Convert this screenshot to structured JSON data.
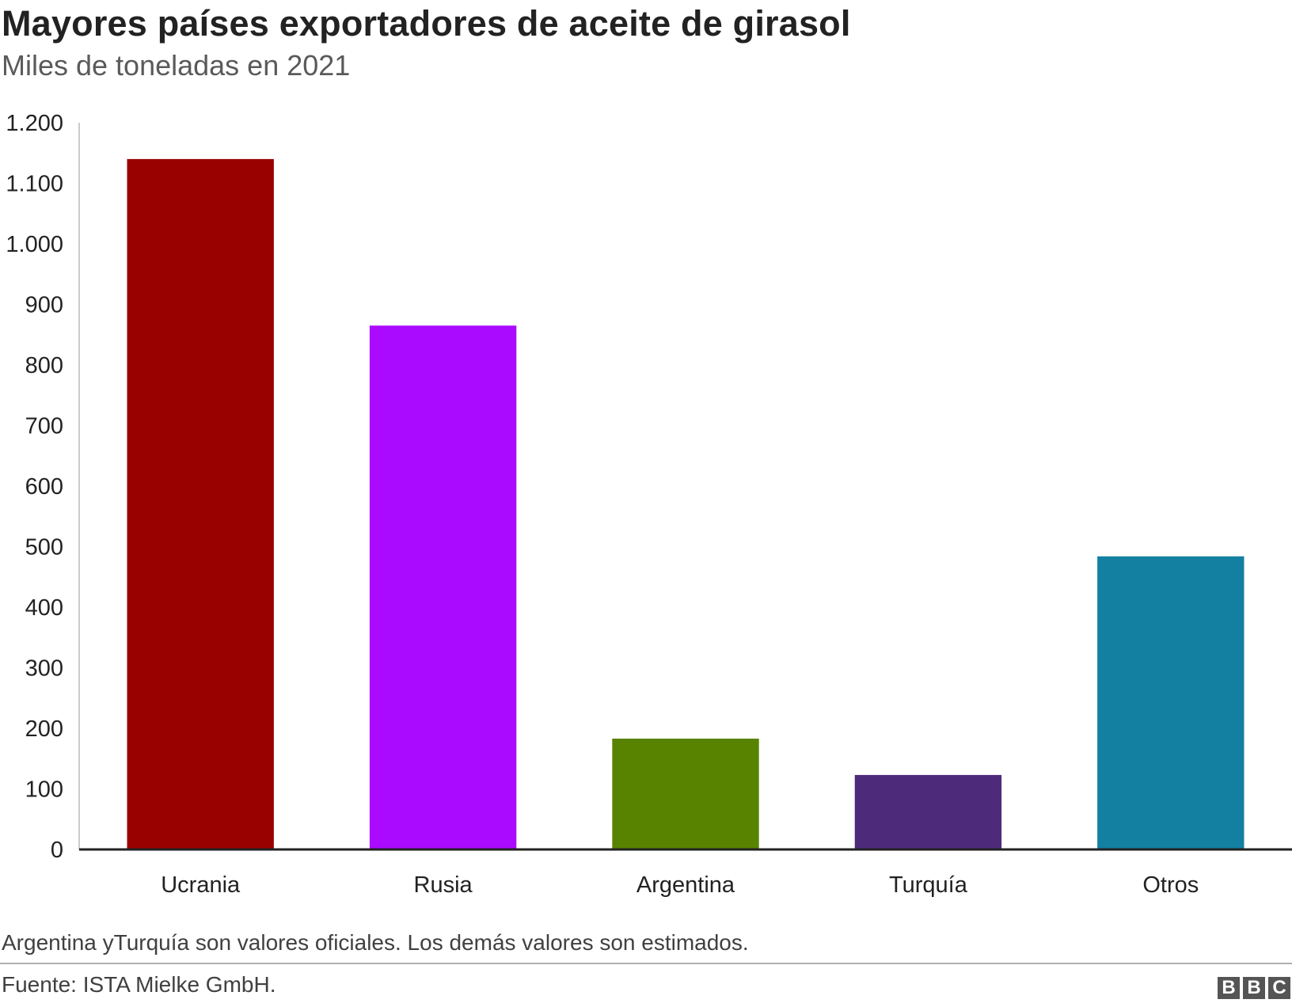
{
  "header": {
    "title": "Mayores países exportadores de aceite de girasol",
    "subtitle": "Miles de toneladas en 2021"
  },
  "chart_data": {
    "type": "bar",
    "title": "Mayores países exportadores de aceite de girasol",
    "subtitle": "Miles de toneladas en 2021",
    "categories": [
      "Ucrania",
      "Rusia",
      "Argentina",
      "Turquía",
      "Otros"
    ],
    "values": [
      1140,
      865,
      183,
      123,
      484
    ],
    "colors": [
      "#990000",
      "#aa0aff",
      "#588300",
      "#4e2a7a",
      "#1380a1"
    ],
    "ylim": [
      0,
      1200
    ],
    "yticks": [
      0,
      100,
      200,
      300,
      400,
      500,
      600,
      700,
      800,
      900,
      1000,
      1100,
      1200
    ],
    "ytick_labels": [
      "0",
      "100",
      "200",
      "300",
      "400",
      "500",
      "600",
      "700",
      "800",
      "900",
      "1.000",
      "1.100",
      "1.200"
    ],
    "grid": false
  },
  "footer": {
    "note": "Argentina yTurquía son valores oficiales. Los demás valores son estimados.",
    "source": "Fuente: ISTA Mielke GmbH.",
    "logo": [
      "B",
      "B",
      "C"
    ]
  }
}
